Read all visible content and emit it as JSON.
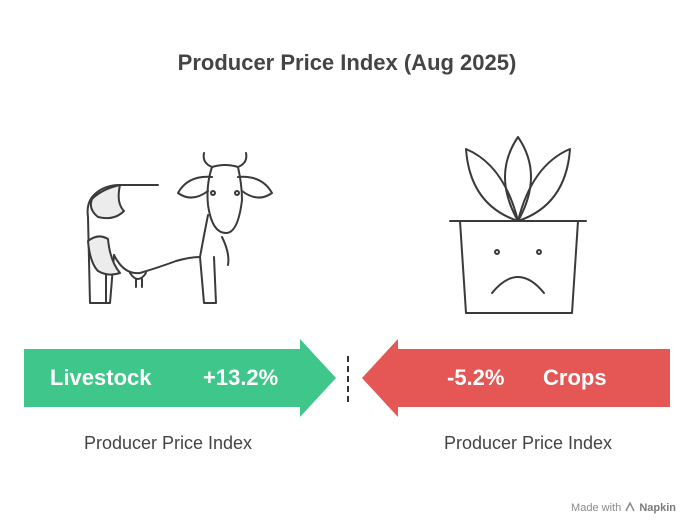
{
  "title": "Producer Price Index (Aug 2025)",
  "left": {
    "label": "Livestock",
    "value": "+13.2%",
    "sublabel": "Producer Price Index",
    "color": "#3fc68a",
    "icon": "cow-icon"
  },
  "right": {
    "label": "Crops",
    "value": "-5.2%",
    "sublabel": "Producer Price Index",
    "color": "#e45755",
    "icon": "sad-plant-pot-icon"
  },
  "watermark": {
    "prefix": "Made with",
    "brand": "Napkin",
    "icon": "napkin-logo-icon"
  }
}
